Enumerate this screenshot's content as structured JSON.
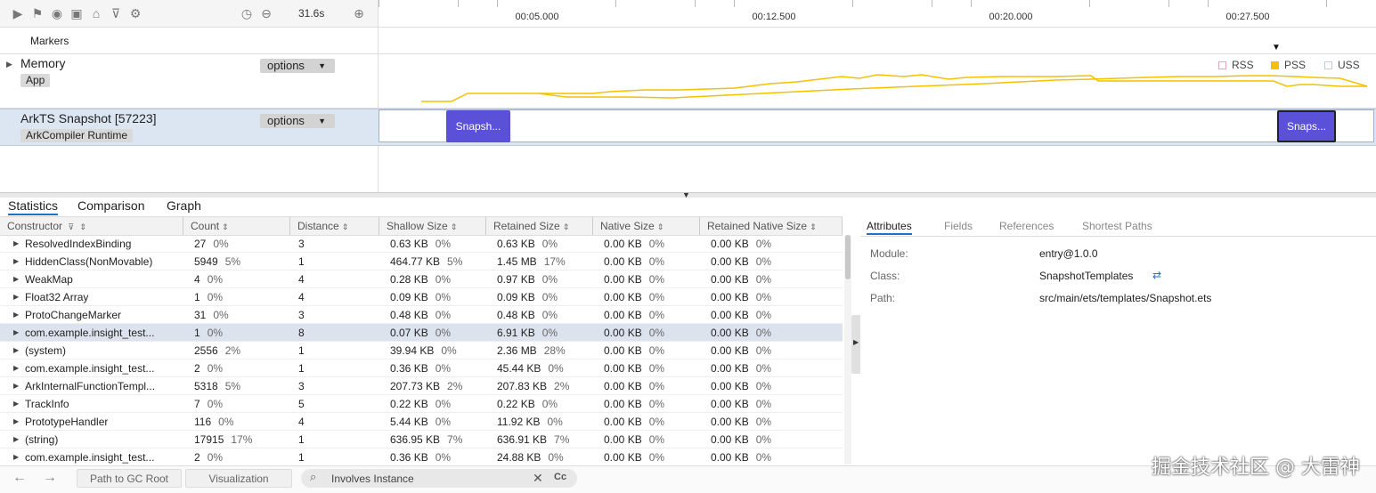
{
  "toolbar": {
    "duration": "31.6s",
    "icons": [
      "play-icon",
      "flag-icon",
      "record-icon",
      "camera-icon",
      "export-icon",
      "filter-icon",
      "gear-icon",
      "clock-icon",
      "zoom-out-icon",
      "zoom-in-icon"
    ]
  },
  "timeline": {
    "ticks": [
      "00:05.000",
      "00:12.500",
      "00:20.000",
      "00:27.500"
    ]
  },
  "tracks": {
    "markers": {
      "title": "Markers"
    },
    "memory": {
      "title": "Memory",
      "tag": "App",
      "options": "options"
    },
    "arkts": {
      "title": "ArkTS Snapshot [57223]",
      "tag": "ArkCompiler Runtime",
      "options": "options"
    },
    "legend": [
      {
        "label": "RSS",
        "color": "#e7a4b8",
        "filled": false
      },
      {
        "label": "PSS",
        "color": "#f2c200",
        "filled": true
      },
      {
        "label": "USS",
        "color": "#a8dcd0",
        "filled": false
      }
    ],
    "snapshots": [
      "Snapsh...",
      "Snaps..."
    ]
  },
  "main_tabs": [
    "Statistics",
    "Comparison",
    "Graph"
  ],
  "columns": [
    "Constructor",
    "Count",
    "Distance",
    "Shallow Size",
    "Retained Size",
    "Native Size",
    "Retained Native Size"
  ],
  "rows": [
    {
      "name": "ResolvedIndexBinding",
      "count": "27",
      "count_pct": "0%",
      "distance": "3",
      "shallow": "0.63 KB",
      "shallow_pct": "0%",
      "retained": "0.63 KB",
      "retained_pct": "0%",
      "native": "0.00 KB",
      "native_pct": "0%",
      "rnative": "0.00 KB",
      "rnative_pct": "0%"
    },
    {
      "name": "HiddenClass(NonMovable)",
      "count": "5949",
      "count_pct": "5%",
      "distance": "1",
      "shallow": "464.77 KB",
      "shallow_pct": "5%",
      "retained": "1.45 MB",
      "retained_pct": "17%",
      "native": "0.00 KB",
      "native_pct": "0%",
      "rnative": "0.00 KB",
      "rnative_pct": "0%"
    },
    {
      "name": "WeakMap",
      "count": "4",
      "count_pct": "0%",
      "distance": "4",
      "shallow": "0.28 KB",
      "shallow_pct": "0%",
      "retained": "0.97 KB",
      "retained_pct": "0%",
      "native": "0.00 KB",
      "native_pct": "0%",
      "rnative": "0.00 KB",
      "rnative_pct": "0%"
    },
    {
      "name": "Float32 Array",
      "count": "1",
      "count_pct": "0%",
      "distance": "4",
      "shallow": "0.09 KB",
      "shallow_pct": "0%",
      "retained": "0.09 KB",
      "retained_pct": "0%",
      "native": "0.00 KB",
      "native_pct": "0%",
      "rnative": "0.00 KB",
      "rnative_pct": "0%"
    },
    {
      "name": "ProtoChangeMarker",
      "count": "31",
      "count_pct": "0%",
      "distance": "3",
      "shallow": "0.48 KB",
      "shallow_pct": "0%",
      "retained": "0.48 KB",
      "retained_pct": "0%",
      "native": "0.00 KB",
      "native_pct": "0%",
      "rnative": "0.00 KB",
      "rnative_pct": "0%"
    },
    {
      "name": "com.example.insight_test...",
      "count": "1",
      "count_pct": "0%",
      "distance": "8",
      "shallow": "0.07 KB",
      "shallow_pct": "0%",
      "retained": "6.91 KB",
      "retained_pct": "0%",
      "native": "0.00 KB",
      "native_pct": "0%",
      "rnative": "0.00 KB",
      "rnative_pct": "0%",
      "selected": true
    },
    {
      "name": "(system)",
      "count": "2556",
      "count_pct": "2%",
      "distance": "1",
      "shallow": "39.94 KB",
      "shallow_pct": "0%",
      "retained": "2.36 MB",
      "retained_pct": "28%",
      "native": "0.00 KB",
      "native_pct": "0%",
      "rnative": "0.00 KB",
      "rnative_pct": "0%"
    },
    {
      "name": "com.example.insight_test...",
      "count": "2",
      "count_pct": "0%",
      "distance": "1",
      "shallow": "0.36 KB",
      "shallow_pct": "0%",
      "retained": "45.44 KB",
      "retained_pct": "0%",
      "native": "0.00 KB",
      "native_pct": "0%",
      "rnative": "0.00 KB",
      "rnative_pct": "0%"
    },
    {
      "name": "ArkInternalFunctionTempl...",
      "count": "5318",
      "count_pct": "5%",
      "distance": "3",
      "shallow": "207.73 KB",
      "shallow_pct": "2%",
      "retained": "207.83 KB",
      "retained_pct": "2%",
      "native": "0.00 KB",
      "native_pct": "0%",
      "rnative": "0.00 KB",
      "rnative_pct": "0%"
    },
    {
      "name": "TrackInfo",
      "count": "7",
      "count_pct": "0%",
      "distance": "5",
      "shallow": "0.22 KB",
      "shallow_pct": "0%",
      "retained": "0.22 KB",
      "retained_pct": "0%",
      "native": "0.00 KB",
      "native_pct": "0%",
      "rnative": "0.00 KB",
      "rnative_pct": "0%"
    },
    {
      "name": "PrototypeHandler",
      "count": "116",
      "count_pct": "0%",
      "distance": "4",
      "shallow": "5.44 KB",
      "shallow_pct": "0%",
      "retained": "11.92 KB",
      "retained_pct": "0%",
      "native": "0.00 KB",
      "native_pct": "0%",
      "rnative": "0.00 KB",
      "rnative_pct": "0%"
    },
    {
      "name": "(string)",
      "count": "17915",
      "count_pct": "17%",
      "distance": "1",
      "shallow": "636.95 KB",
      "shallow_pct": "7%",
      "retained": "636.91 KB",
      "retained_pct": "7%",
      "native": "0.00 KB",
      "native_pct": "0%",
      "rnative": "0.00 KB",
      "rnative_pct": "0%"
    },
    {
      "name": "com.example.insight_test...",
      "count": "2",
      "count_pct": "0%",
      "distance": "1",
      "shallow": "0.36 KB",
      "shallow_pct": "0%",
      "retained": "24.88 KB",
      "retained_pct": "0%",
      "native": "0.00 KB",
      "native_pct": "0%",
      "rnative": "0.00 KB",
      "rnative_pct": "0%"
    }
  ],
  "details": {
    "tabs": [
      "Attributes",
      "Fields",
      "References",
      "Shortest Paths"
    ],
    "attributes": [
      {
        "key": "Module:",
        "value": "entry@1.0.0"
      },
      {
        "key": "Class:",
        "value": "SnapshotTemplates"
      },
      {
        "key": "Path:",
        "value": "src/main/ets/templates/Snapshot.ets"
      }
    ]
  },
  "bottom_bar": {
    "path_btn": "Path to GC Root",
    "viz_btn": "Visualization",
    "search_value": "Involves Instance",
    "case_label": "Cc"
  },
  "watermark": "掘金技术社区 @ 大雷神"
}
